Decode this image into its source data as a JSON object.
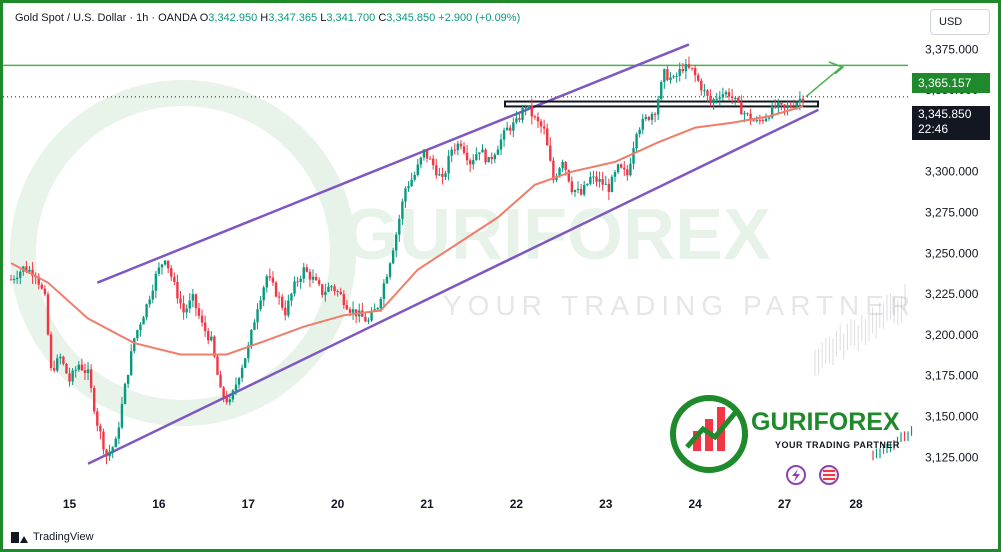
{
  "header": {
    "symbol": "Gold Spot / U.S. Dollar",
    "interval": "1h",
    "broker": "OANDA",
    "o_label": "O",
    "o_value": "3,342.950",
    "h_label": "H",
    "h_value": "3,347.365",
    "l_label": "L",
    "l_value": "3,341.700",
    "c_label": "C",
    "c_value": "3,345.850",
    "change": "+2.900 (+0.09%)",
    "currency": "USD"
  },
  "price_tags": {
    "level": "3,365.157",
    "current": "3,345.850",
    "countdown": "22:46"
  },
  "watermark": {
    "brand": "GURIFOREX",
    "tagline": "YOUR TRADING PARTNER"
  },
  "brand_logo": {
    "name": "GURIFOREX",
    "tagline": "YOUR TRADING PARTNER"
  },
  "footer": {
    "label": "TradingView"
  },
  "colors": {
    "up": "#089981",
    "down": "#f23645",
    "ma": "#f07c6a",
    "channel": "#7e57c2",
    "level": "#4caf50",
    "accent": "#1f8a2c"
  },
  "chart_data": {
    "type": "candlestick",
    "title": "",
    "xlabel": "",
    "ylabel": "",
    "ylim": [
      3108,
      3385
    ],
    "y_ticks": [
      3375,
      3350,
      3325,
      3300,
      3275,
      3250,
      3225,
      3200,
      3175,
      3150,
      3125
    ],
    "y_tick_labels": [
      "3,375.000",
      "3,350.000",
      "3,325.000",
      "3,300.000",
      "3,275.000",
      "3,250.000",
      "3,225.000",
      "3,200.000",
      "3,175.000",
      "3,150.000",
      "3,125.000"
    ],
    "x_ticks": [
      "15",
      "16",
      "17",
      "20",
      "21",
      "22",
      "23",
      "24",
      "27",
      "28"
    ],
    "close_path": [
      [
        0,
        3234
      ],
      [
        4,
        3241
      ],
      [
        8,
        3238
      ],
      [
        11,
        3222
      ],
      [
        13,
        3178
      ],
      [
        16,
        3186
      ],
      [
        19,
        3172
      ],
      [
        22,
        3182
      ],
      [
        25,
        3176
      ],
      [
        28,
        3146
      ],
      [
        31,
        3126
      ],
      [
        34,
        3134
      ],
      [
        37,
        3168
      ],
      [
        40,
        3198
      ],
      [
        44,
        3218
      ],
      [
        47,
        3236
      ],
      [
        50,
        3248
      ],
      [
        53,
        3230
      ],
      [
        56,
        3214
      ],
      [
        59,
        3222
      ],
      [
        62,
        3206
      ],
      [
        65,
        3196
      ],
      [
        68,
        3165
      ],
      [
        71,
        3158
      ],
      [
        74,
        3176
      ],
      [
        77,
        3192
      ],
      [
        80,
        3218
      ],
      [
        83,
        3236
      ],
      [
        86,
        3226
      ],
      [
        89,
        3214
      ],
      [
        92,
        3230
      ],
      [
        95,
        3240
      ],
      [
        98,
        3234
      ],
      [
        101,
        3226
      ],
      [
        104,
        3230
      ],
      [
        107,
        3224
      ],
      [
        110,
        3216
      ],
      [
        113,
        3212
      ],
      [
        116,
        3208
      ],
      [
        119,
        3218
      ],
      [
        122,
        3238
      ],
      [
        125,
        3262
      ],
      [
        128,
        3290
      ],
      [
        131,
        3298
      ],
      [
        134,
        3312
      ],
      [
        137,
        3304
      ],
      [
        140,
        3294
      ],
      [
        143,
        3314
      ],
      [
        146,
        3318
      ],
      [
        149,
        3306
      ],
      [
        152,
        3314
      ],
      [
        155,
        3306
      ],
      [
        158,
        3316
      ],
      [
        161,
        3326
      ],
      [
        164,
        3330
      ],
      [
        167,
        3341
      ],
      [
        170,
        3332
      ],
      [
        173,
        3325
      ],
      [
        176,
        3295
      ],
      [
        179,
        3308
      ],
      [
        182,
        3290
      ],
      [
        185,
        3286
      ],
      [
        188,
        3296
      ],
      [
        191,
        3294
      ],
      [
        194,
        3290
      ],
      [
        197,
        3302
      ],
      [
        200,
        3298
      ],
      [
        203,
        3326
      ],
      [
        206,
        3332
      ],
      [
        209,
        3338
      ],
      [
        212,
        3360
      ],
      [
        215,
        3356
      ],
      [
        218,
        3364
      ],
      [
        221,
        3362
      ],
      [
        224,
        3352
      ],
      [
        227,
        3342
      ],
      [
        230,
        3348
      ],
      [
        233,
        3348
      ],
      [
        236,
        3340
      ],
      [
        239,
        3334
      ],
      [
        242,
        3330
      ],
      [
        245,
        3334
      ],
      [
        248,
        3340
      ],
      [
        251,
        3338
      ],
      [
        254,
        3342
      ],
      [
        257,
        3346
      ]
    ],
    "moving_average": [
      [
        0,
        3244
      ],
      [
        12,
        3232
      ],
      [
        25,
        3210
      ],
      [
        40,
        3195
      ],
      [
        55,
        3188
      ],
      [
        70,
        3188
      ],
      [
        82,
        3196
      ],
      [
        95,
        3205
      ],
      [
        108,
        3212
      ],
      [
        120,
        3215
      ],
      [
        132,
        3240
      ],
      [
        145,
        3256
      ],
      [
        158,
        3272
      ],
      [
        170,
        3292
      ],
      [
        182,
        3300
      ],
      [
        196,
        3306
      ],
      [
        210,
        3318
      ],
      [
        222,
        3327
      ],
      [
        234,
        3330
      ],
      [
        246,
        3334
      ],
      [
        257,
        3340
      ]
    ],
    "channel_upper": [
      [
        28,
        3232
      ],
      [
        220,
        3378
      ]
    ],
    "channel_lower": [
      [
        25,
        3121
      ],
      [
        262,
        3338
      ]
    ],
    "horizontal_level": 3365.157,
    "resistance_box": [
      3340,
      3343
    ],
    "current_price": 3345.85
  }
}
